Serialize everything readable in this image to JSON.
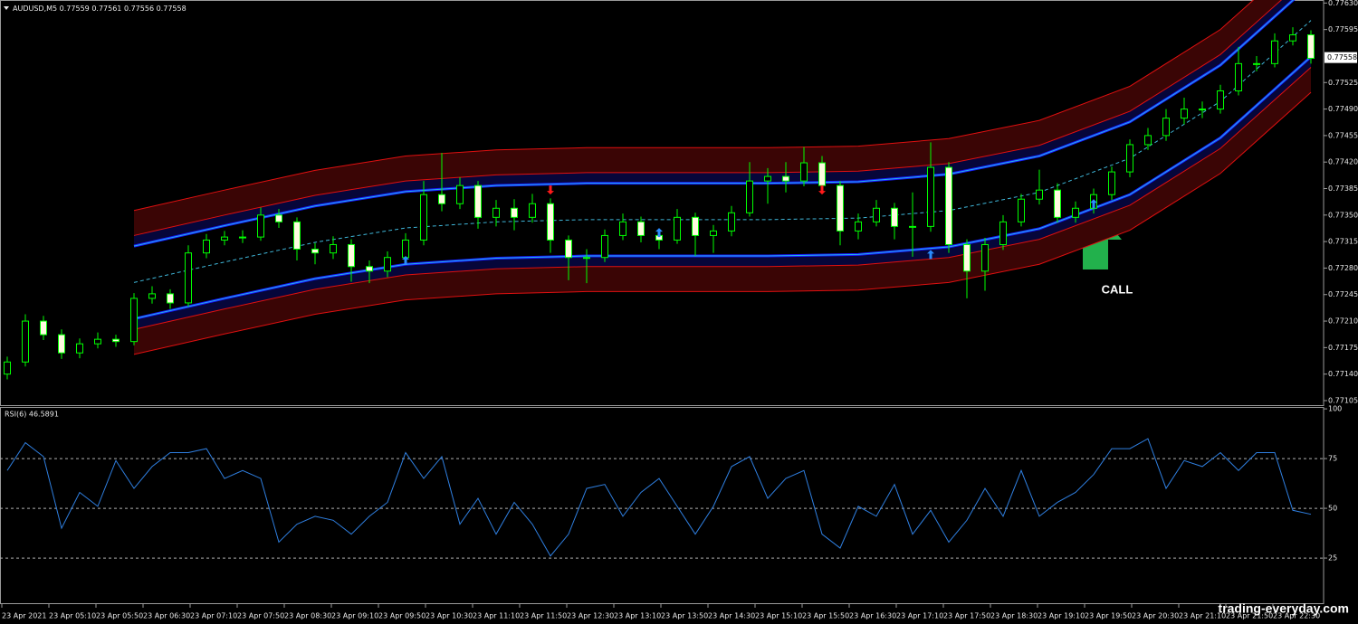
{
  "chart_data": [
    {
      "type": "candlestick",
      "symbol": "AUDUSD,M5",
      "header_ohlc": [
        0.77559,
        0.77561,
        0.77556,
        0.77558
      ],
      "open": [
        0.7714,
        0.77156,
        0.7721,
        0.77192,
        0.77168,
        0.7718,
        0.77186,
        0.77183,
        0.7724,
        0.77246,
        0.77234,
        0.773,
        0.77317,
        0.77321,
        0.77321,
        0.7735,
        0.77341,
        0.77305,
        0.773,
        0.77311,
        0.77282,
        0.77276,
        0.77294,
        0.77317,
        0.77377,
        0.77365,
        0.77389,
        0.77347,
        0.77359,
        0.77347,
        0.77365,
        0.77317,
        0.77294,
        0.77294,
        0.77323,
        0.77341,
        0.77323,
        0.77317,
        0.77347,
        0.77323,
        0.77329,
        0.77353,
        0.77395,
        0.77401,
        0.77395,
        0.77419,
        0.77389,
        0.77329,
        0.77341,
        0.77359,
        0.77335,
        0.77335,
        0.77413,
        0.77311,
        0.77276,
        0.77311,
        0.77341,
        0.77371,
        0.77383,
        0.77347,
        0.77359,
        0.77377,
        0.77407,
        0.77443,
        0.77455,
        0.77478,
        0.7749,
        0.7749,
        0.77514,
        0.7755,
        0.7755,
        0.7758,
        0.77588
      ],
      "high": [
        0.77163,
        0.77219,
        0.77217,
        0.77199,
        0.77187,
        0.77195,
        0.77192,
        0.77247,
        0.77256,
        0.77252,
        0.7731,
        0.77325,
        0.77329,
        0.7733,
        0.7736,
        0.77358,
        0.77347,
        0.77313,
        0.77322,
        0.77318,
        0.7729,
        0.77302,
        0.77326,
        0.77395,
        0.77432,
        0.774,
        0.77395,
        0.7737,
        0.77371,
        0.77378,
        0.77372,
        0.77323,
        0.77305,
        0.77331,
        0.77352,
        0.77348,
        0.7733,
        0.77358,
        0.77353,
        0.77337,
        0.77362,
        0.7742,
        0.77412,
        0.7742,
        0.7744,
        0.77428,
        0.77395,
        0.77352,
        0.7737,
        0.77366,
        0.7738,
        0.77446,
        0.7742,
        0.77318,
        0.7732,
        0.7735,
        0.77378,
        0.7741,
        0.77392,
        0.77368,
        0.77385,
        0.77414,
        0.7745,
        0.77465,
        0.7749,
        0.77505,
        0.775,
        0.77522,
        0.77572,
        0.7756,
        0.7759,
        0.77598,
        0.77594
      ],
      "low": [
        0.77133,
        0.7715,
        0.77185,
        0.7716,
        0.77161,
        0.77174,
        0.77176,
        0.77178,
        0.77233,
        0.77226,
        0.77229,
        0.77293,
        0.7731,
        0.77313,
        0.77316,
        0.77333,
        0.7729,
        0.77285,
        0.77292,
        0.77262,
        0.7726,
        0.77268,
        0.77288,
        0.7731,
        0.77355,
        0.77358,
        0.77332,
        0.77335,
        0.7733,
        0.7734,
        0.773,
        0.77264,
        0.7726,
        0.77288,
        0.77317,
        0.77314,
        0.77305,
        0.77312,
        0.77296,
        0.773,
        0.77322,
        0.77348,
        0.77365,
        0.7738,
        0.77388,
        0.77382,
        0.7731,
        0.77318,
        0.77335,
        0.77318,
        0.77295,
        0.77328,
        0.773,
        0.7724,
        0.7725,
        0.77304,
        0.77335,
        0.77364,
        0.7734,
        0.7734,
        0.77352,
        0.7737,
        0.774,
        0.77436,
        0.77448,
        0.7747,
        0.77478,
        0.77484,
        0.77508,
        0.7754,
        0.77545,
        0.77574,
        0.7755
      ],
      "close": [
        0.77156,
        0.7721,
        0.77192,
        0.77168,
        0.7718,
        0.77186,
        0.77183,
        0.7724,
        0.77246,
        0.77234,
        0.773,
        0.77317,
        0.77321,
        0.77321,
        0.7735,
        0.77341,
        0.77305,
        0.773,
        0.77311,
        0.77282,
        0.77276,
        0.77294,
        0.77317,
        0.77377,
        0.77365,
        0.77389,
        0.77347,
        0.77359,
        0.77347,
        0.77365,
        0.77317,
        0.77294,
        0.77294,
        0.77323,
        0.77341,
        0.77323,
        0.77317,
        0.77347,
        0.77323,
        0.77329,
        0.77353,
        0.77395,
        0.77401,
        0.77395,
        0.77419,
        0.77389,
        0.77329,
        0.77341,
        0.77359,
        0.77335,
        0.77335,
        0.77413,
        0.77311,
        0.77276,
        0.77311,
        0.77341,
        0.77371,
        0.77383,
        0.77347,
        0.77359,
        0.77377,
        0.77407,
        0.77443,
        0.77455,
        0.77478,
        0.7749,
        0.7749,
        0.77514,
        0.7755,
        0.7755,
        0.7758,
        0.77588,
        0.77557
      ],
      "up_color": "#000000",
      "down_color": "#fffbe0",
      "wick_color": "#00ff00",
      "bands": {
        "x": [
          7,
          12,
          17,
          22,
          27,
          32,
          37,
          42,
          47,
          52,
          57,
          62,
          67,
          72
        ],
        "outer_upper": [
          0.77356,
          0.77383,
          0.77409,
          0.77428,
          0.77436,
          0.77439,
          0.77439,
          0.77439,
          0.77441,
          0.77451,
          0.77475,
          0.7752,
          0.77595,
          0.77702
        ],
        "inner_upper": [
          0.77323,
          0.7735,
          0.77376,
          0.77395,
          0.77403,
          0.77406,
          0.77406,
          0.77406,
          0.77408,
          0.77418,
          0.77442,
          0.77487,
          0.77562,
          0.77669
        ],
        "cyan_upper": [
          0.77309,
          0.77336,
          0.77362,
          0.77381,
          0.77389,
          0.77392,
          0.77392,
          0.77392,
          0.77394,
          0.77404,
          0.77428,
          0.77473,
          0.77548,
          0.77655
        ],
        "mid": [
          0.77261,
          0.77288,
          0.77314,
          0.77333,
          0.77341,
          0.77344,
          0.77344,
          0.77344,
          0.77346,
          0.77356,
          0.7738,
          0.77425,
          0.775,
          0.77607
        ],
        "cyan_lower": [
          0.77213,
          0.7724,
          0.77266,
          0.77285,
          0.77293,
          0.77296,
          0.77296,
          0.77296,
          0.77298,
          0.77308,
          0.77332,
          0.77377,
          0.77452,
          0.77559
        ],
        "inner_lower": [
          0.77199,
          0.77226,
          0.77252,
          0.77271,
          0.77279,
          0.77282,
          0.77282,
          0.77282,
          0.77284,
          0.77294,
          0.77318,
          0.77363,
          0.77438,
          0.77545
        ],
        "outer_lower": [
          0.77166,
          0.77193,
          0.77219,
          0.77238,
          0.77246,
          0.77249,
          0.77249,
          0.77249,
          0.77251,
          0.77261,
          0.77285,
          0.7733,
          0.77405,
          0.77512
        ],
        "colors": {
          "outer_fill": "#3a0505",
          "inner_fill": "#06063a",
          "red_line": "#e01010",
          "blue_line": "#1a1aff",
          "cyan_line": "#22b8e8",
          "mid_line": "#3fb6d8"
        }
      },
      "buy_signals": {
        "x": [
          22,
          36,
          51,
          60
        ],
        "values": [
          0.7729,
          0.77327,
          0.77298,
          0.77365
        ],
        "color": "#2a8cff"
      },
      "sell_signals": {
        "x": [
          30,
          45
        ],
        "values": [
          0.77383,
          0.77383
        ],
        "color": "#ff1a1a"
      },
      "annotation": "CALL",
      "current_price": 0.77558,
      "ylim": [
        0.77099,
        0.77634
      ],
      "yticks": [
        {
          "value": 0.7763,
          "label": "0.77630"
        },
        0.77595,
        0.77525,
        {
          "value": 0.7749,
          "label": "0.77490"
        },
        0.77455,
        {
          "value": 0.7742,
          "label": "0.77420"
        },
        0.77385,
        {
          "value": 0.7735,
          "label": "0.77350"
        },
        0.77315,
        {
          "value": 0.7728,
          "label": "0.77280"
        },
        0.77245,
        {
          "value": 0.7721,
          "label": "0.77210"
        },
        0.77175,
        {
          "value": 0.7714,
          "label": "0.77140"
        },
        0.77105
      ],
      "x_labels": [
        "23 Apr 2021",
        "23 Apr 05:10",
        "23 Apr 05:50",
        "23 Apr 06:30",
        "23 Apr 07:10",
        "23 Apr 07:50",
        "23 Apr 08:30",
        "23 Apr 09:10",
        "23 Apr 09:50",
        "23 Apr 10:30",
        "23 Apr 11:10",
        "23 Apr 11:50",
        "23 Apr 12:30",
        "23 Apr 13:10",
        "23 Apr 13:50",
        "23 Apr 14:30",
        "23 Apr 15:10",
        "23 Apr 15:50",
        "23 Apr 16:30",
        "23 Apr 17:10",
        "23 Apr 17:50",
        "23 Apr 18:30",
        "23 Apr 19:10",
        "23 Apr 19:50",
        "23 Apr 20:30",
        "23 Apr 21:10",
        "23 Apr 21:50",
        "23 Apr 22:30"
      ]
    },
    {
      "type": "line",
      "title": "RSI(6) 46.5891",
      "values": [
        69,
        83,
        76,
        40,
        58,
        51,
        74,
        60,
        71,
        78,
        78,
        80,
        65,
        69,
        65,
        33,
        42,
        46,
        44,
        37,
        46,
        53,
        78,
        65,
        76,
        42,
        55,
        37,
        53,
        42,
        26,
        37,
        60,
        62,
        46,
        58,
        65,
        51,
        37,
        51,
        71,
        76,
        55,
        65,
        69,
        37,
        30,
        51,
        46,
        62,
        37,
        49,
        33,
        44,
        60,
        46,
        69,
        46,
        53,
        58,
        67,
        80,
        80,
        85,
        60,
        74,
        71,
        78,
        69,
        78,
        78,
        49,
        47
      ],
      "color": "#2f7fe0",
      "ylim": [
        2.3,
        100.5
      ],
      "yticks": [
        100,
        75,
        50,
        25
      ],
      "levels": [
        75,
        50,
        25
      ]
    }
  ],
  "watermark": "trading-everyday.com"
}
